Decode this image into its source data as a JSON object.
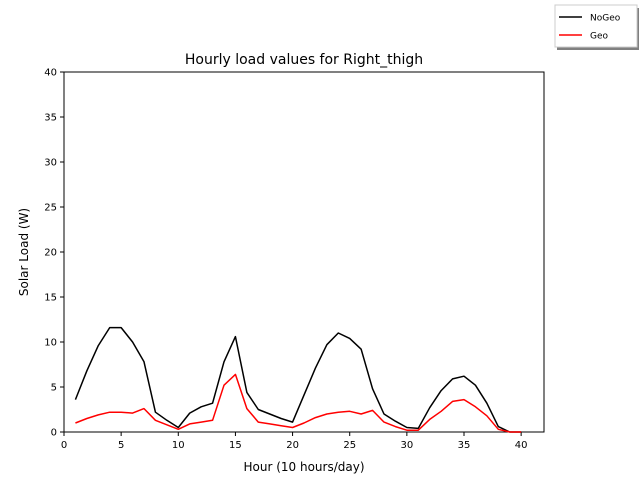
{
  "chart_data": {
    "type": "line",
    "title": "Hourly load values for Right_thigh",
    "xlabel": "Hour (10 hours/day)",
    "ylabel": "Solar Load (W)",
    "xlim": [
      0,
      42
    ],
    "ylim": [
      0,
      40
    ],
    "xticks": [
      0,
      5,
      10,
      15,
      20,
      25,
      30,
      35,
      40
    ],
    "yticks": [
      0,
      5,
      10,
      15,
      20,
      25,
      30,
      35,
      40
    ],
    "grid": false,
    "legend_position": "top-right",
    "x": [
      1,
      2,
      3,
      4,
      5,
      6,
      7,
      8,
      9,
      10,
      11,
      12,
      13,
      14,
      15,
      16,
      17,
      18,
      19,
      20,
      21,
      22,
      23,
      24,
      25,
      26,
      27,
      28,
      29,
      30,
      31,
      32,
      33,
      34,
      35,
      36,
      37,
      38,
      39,
      40
    ],
    "series": [
      {
        "name": "NoGeo",
        "color": "#000000",
        "values": [
          3.6,
          6.8,
          9.6,
          11.6,
          11.6,
          10.0,
          7.8,
          2.2,
          1.3,
          0.5,
          2.1,
          2.8,
          3.2,
          7.8,
          10.6,
          4.4,
          2.5,
          2.0,
          1.5,
          1.1,
          4.1,
          7.1,
          9.7,
          11.0,
          10.4,
          9.2,
          4.8,
          2.0,
          1.2,
          0.5,
          0.4,
          2.7,
          4.6,
          5.9,
          6.2,
          5.2,
          3.2,
          0.6,
          0.0,
          0.0
        ]
      },
      {
        "name": "Geo",
        "color": "#ff0000",
        "values": [
          1.0,
          1.5,
          1.9,
          2.2,
          2.2,
          2.1,
          2.6,
          1.3,
          0.8,
          0.3,
          0.9,
          1.1,
          1.3,
          5.2,
          6.4,
          2.6,
          1.1,
          0.9,
          0.7,
          0.5,
          1.0,
          1.6,
          2.0,
          2.2,
          2.3,
          2.0,
          2.4,
          1.1,
          0.6,
          0.2,
          0.2,
          1.4,
          2.3,
          3.4,
          3.6,
          2.8,
          1.8,
          0.3,
          0.0,
          0.0
        ]
      }
    ]
  }
}
